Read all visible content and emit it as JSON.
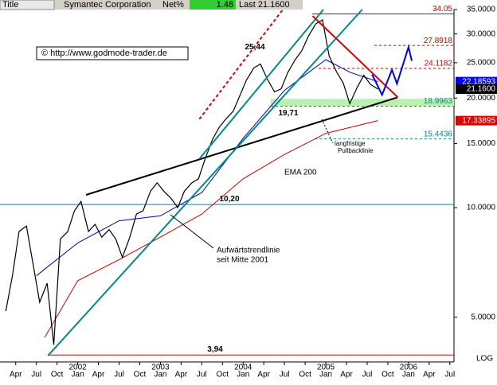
{
  "header": {
    "title_label": "Title",
    "name": "Symantec Corporation",
    "net_label": "Net%",
    "net_value": "1.48",
    "last": "Last 21.1600"
  },
  "chart_data": {
    "type": "line",
    "log_scale": true,
    "xlim": [
      2001.06,
      2006.55
    ],
    "ylim": [
      3.77,
      35
    ],
    "xticks": [
      {
        "value": 2001.25,
        "label": "Apr"
      },
      {
        "value": 2001.5,
        "label": "Jul"
      },
      {
        "value": 2001.75,
        "label": "Oct"
      },
      {
        "value": 2002.0,
        "label": "Jan"
      },
      {
        "value": 2002.25,
        "label": "Apr"
      },
      {
        "value": 2002.5,
        "label": "Jul"
      },
      {
        "value": 2002.75,
        "label": "Oct"
      },
      {
        "value": 2003.0,
        "label": "Jan"
      },
      {
        "value": 2003.25,
        "label": "Apr"
      },
      {
        "value": 2003.5,
        "label": "Jul"
      },
      {
        "value": 2003.75,
        "label": "Oct"
      },
      {
        "value": 2004.0,
        "label": "Jan"
      },
      {
        "value": 2004.25,
        "label": "Apr"
      },
      {
        "value": 2004.5,
        "label": "Jul"
      },
      {
        "value": 2004.75,
        "label": "Oct"
      },
      {
        "value": 2005.0,
        "label": "Jan"
      },
      {
        "value": 2005.25,
        "label": "Apr"
      },
      {
        "value": 2005.5,
        "label": "Jul"
      },
      {
        "value": 2005.75,
        "label": "Oct"
      },
      {
        "value": 2006.0,
        "label": "Jan"
      },
      {
        "value": 2006.25,
        "label": "Apr"
      },
      {
        "value": 2006.5,
        "label": "Jul"
      }
    ],
    "year_labels": [
      2002,
      2003,
      2004,
      2005,
      2006
    ],
    "yticks": [
      {
        "value": 5,
        "label": "5.0000"
      },
      {
        "value": 10,
        "label": "10.0000"
      },
      {
        "value": 15,
        "label": "15.0000"
      },
      {
        "value": 20,
        "label": "20.0000"
      },
      {
        "value": 25,
        "label": "25.0000"
      },
      {
        "value": 30,
        "label": "30.0000"
      },
      {
        "value": 35,
        "label": "35.0000"
      }
    ],
    "scale_label": "LOG",
    "x": [
      2001.13,
      2001.21,
      2001.29,
      2001.38,
      2001.46,
      2001.54,
      2001.63,
      2001.71,
      2001.79,
      2001.88,
      2001.96,
      2002.04,
      2002.13,
      2002.21,
      2002.29,
      2002.38,
      2002.46,
      2002.54,
      2002.63,
      2002.71,
      2002.79,
      2002.88,
      2002.96,
      2003.04,
      2003.13,
      2003.21,
      2003.29,
      2003.38,
      2003.46,
      2003.54,
      2003.63,
      2003.71,
      2003.79,
      2003.88,
      2003.96,
      2004.04,
      2004.13,
      2004.21,
      2004.29,
      2004.38,
      2004.46,
      2004.54,
      2004.63,
      2004.71,
      2004.79,
      2004.88,
      2004.96,
      2005.04,
      2005.13,
      2005.21,
      2005.29,
      2005.38,
      2005.46,
      2005.54,
      2005.63
    ],
    "series": [
      {
        "name": "Symantec",
        "color": "#000000",
        "values": [
          5.2,
          6.5,
          8.6,
          8.9,
          7.0,
          5.5,
          6.2,
          4.2,
          8.2,
          8.6,
          9.8,
          10.4,
          8.6,
          9.0,
          8.3,
          8.7,
          8.2,
          7.3,
          8.3,
          9.6,
          9.8,
          11.1,
          11.7,
          11.1,
          10.6,
          10.0,
          11.1,
          11.7,
          12.0,
          13.6,
          15.4,
          16.6,
          17.5,
          18.4,
          20.3,
          22.4,
          24.2,
          24.8,
          22.6,
          20.8,
          21.2,
          23.5,
          25.5,
          27.0,
          29.6,
          32.0,
          32.8,
          26.1,
          23.6,
          22.0,
          19.3,
          21.4,
          23.1,
          21.8,
          21.16
        ]
      }
    ],
    "averages": [
      {
        "color": "#0000c0",
        "x": [
          2001.5,
          2002.0,
          2002.5,
          2003.0,
          2003.5,
          2004.0,
          2004.5,
          2005.0,
          2005.3,
          2005.63
        ],
        "values": [
          6.5,
          8.0,
          9.2,
          9.5,
          11.0,
          15.5,
          21.0,
          25.5,
          23.5,
          22.19
        ]
      },
      {
        "color": "#d00000",
        "x": [
          2001.6,
          2002.0,
          2002.5,
          2003.0,
          2003.5,
          2004.0,
          2004.5,
          2005.0,
          2005.63
        ],
        "values": [
          4.4,
          6.3,
          7.2,
          8.3,
          9.6,
          12.0,
          14.0,
          16.0,
          17.34
        ]
      }
    ],
    "trendlines": [
      {
        "color": "#000000",
        "dash": false,
        "x": [
          2002.1,
          2005.87
        ],
        "values": [
          10.84,
          20.1
        ]
      },
      {
        "color": "#008b8b",
        "dash": false,
        "x": [
          2001.64,
          2005.44
        ],
        "values": [
          3.92,
          35
        ]
      },
      {
        "color": "#008b8b",
        "dash": false,
        "x": [
          2003.47,
          2004.97
        ],
        "values": [
          13.6,
          35
        ]
      },
      {
        "color": "#e00000",
        "dash": false,
        "x": [
          2004.84,
          2005.87
        ],
        "values": [
          33.6,
          20.1
        ]
      },
      {
        "color": "#e00000",
        "dash": true,
        "x": [
          2003.47,
          2004.48
        ],
        "values": [
          17.5,
          35
        ]
      },
      {
        "color": "#0000ff",
        "dash": false,
        "x": [
          2005.56,
          2005.68,
          2005.8,
          2005.86,
          2006.0,
          2006.04
        ],
        "values": [
          23.2,
          20.4,
          23.9,
          21.9,
          27.6,
          25.3
        ]
      }
    ],
    "levels": [
      {
        "value": 34.05,
        "label": "34.05",
        "color": "#d00000",
        "dash": false
      },
      {
        "value": 27.8918,
        "label": "27.8918",
        "color": "#d00000",
        "dash": true
      },
      {
        "value": 24.1182,
        "label": "24.1182",
        "color": "#d00000",
        "dash": true
      },
      {
        "value": 18.9963,
        "label": "18.9963",
        "color": "#008b8b",
        "dash": true
      },
      {
        "value": 15.4436,
        "label": "15.4436",
        "color": "#008b8b",
        "dash": true
      },
      {
        "value": 10.2,
        "label": "10,20",
        "color": "#008b8b",
        "dash": false
      },
      {
        "value": 3.94,
        "label": "3,94",
        "color": "#d00000",
        "dash": false
      }
    ],
    "price_tags": [
      {
        "value": 22.18593,
        "label": "22.18593",
        "color": "#0000ff"
      },
      {
        "value": 21.16,
        "label": "21.1600",
        "color": "#000000"
      },
      {
        "value": 17.33895,
        "label": "17.33895",
        "color": "#e00000"
      }
    ],
    "annotations": [
      {
        "text": "25,44",
        "value": 25.44
      },
      {
        "text": "19,71",
        "value": 19.71
      },
      {
        "text": "langfristige"
      },
      {
        "text": "Pullbacklinie"
      },
      {
        "text": "EMA 200"
      },
      {
        "text": "Aufwärtstrendlinie"
      },
      {
        "text": "seit Mitte 2001"
      }
    ],
    "watermark": "© http://www.godmode-trader.de"
  }
}
